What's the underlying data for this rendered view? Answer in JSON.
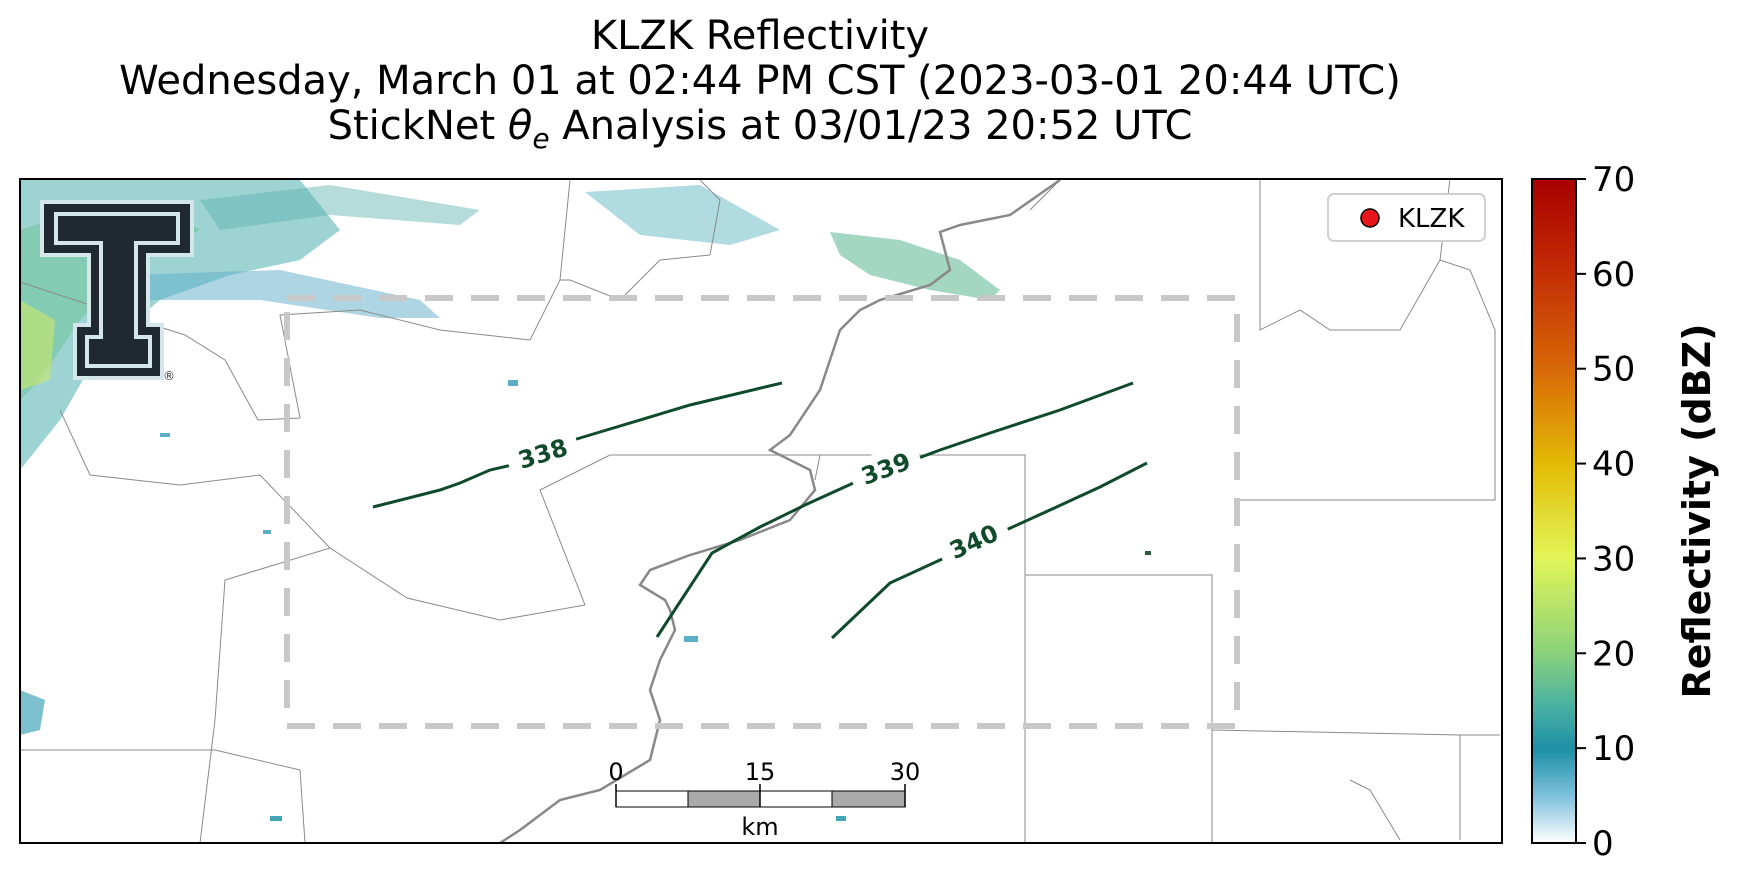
{
  "title": {
    "line1": "KLZK Reflectivity",
    "line2": "Wednesday, March 01 at 02:44 PM CST (2023-03-01 20:44 UTC)",
    "line3_prefix": "StickNet ",
    "line3_theta": "θ",
    "line3_sub": "e",
    "line3_suffix": " Analysis at 03/01/23 20:52 UTC"
  },
  "legend": {
    "label": "KLZK",
    "marker_color": "#e8161b"
  },
  "colorbar": {
    "label": "Reflectivity (dBZ)",
    "min": 0,
    "max": 70,
    "ticks": [
      "0",
      "10",
      "20",
      "30",
      "40",
      "50",
      "60",
      "70"
    ],
    "stops": [
      {
        "value": 0,
        "color": "#ffffff"
      },
      {
        "value": 5,
        "color": "#7fc1dd"
      },
      {
        "value": 10,
        "color": "#1e8fa6"
      },
      {
        "value": 15,
        "color": "#4bb3a0"
      },
      {
        "value": 20,
        "color": "#8ed37a"
      },
      {
        "value": 30,
        "color": "#e2f558"
      },
      {
        "value": 40,
        "color": "#e3bb05"
      },
      {
        "value": 50,
        "color": "#d86a07"
      },
      {
        "value": 60,
        "color": "#c32d05"
      },
      {
        "value": 70,
        "color": "#a80000"
      }
    ]
  },
  "contours": [
    {
      "label": "338",
      "color": "#0f4a2a"
    },
    {
      "label": "339",
      "color": "#0f4a2a"
    },
    {
      "label": "340",
      "color": "#0f4a2a"
    }
  ],
  "scale_bar": {
    "ticks": [
      "0",
      "15",
      "30"
    ],
    "unit": "km"
  },
  "logo": {
    "name": "texas-tech-double-t-logo",
    "registered_mark": "®"
  }
}
